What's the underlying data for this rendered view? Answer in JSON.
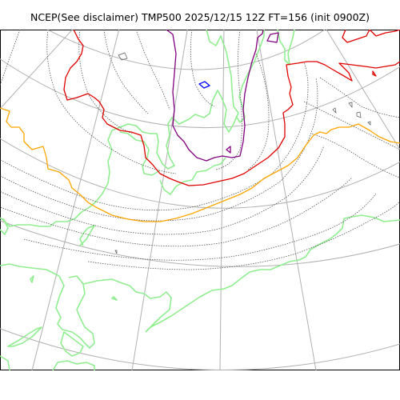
{
  "title": "NCEP(See disclaimer) TMP500 2025/12/15 12Z FT=156 (init 0900Z)",
  "map": {
    "projection": "polar-stereographic",
    "colors": {
      "frame": "#000000",
      "graticule": "#b0b0b0",
      "coast": "#90ee90",
      "height_contour": "#555555",
      "isotherm_red": "#e00000",
      "isotherm_orange": "#ffa500",
      "isotherm_purple": "#800080",
      "isotherm_blue": "#0000ff"
    }
  }
}
